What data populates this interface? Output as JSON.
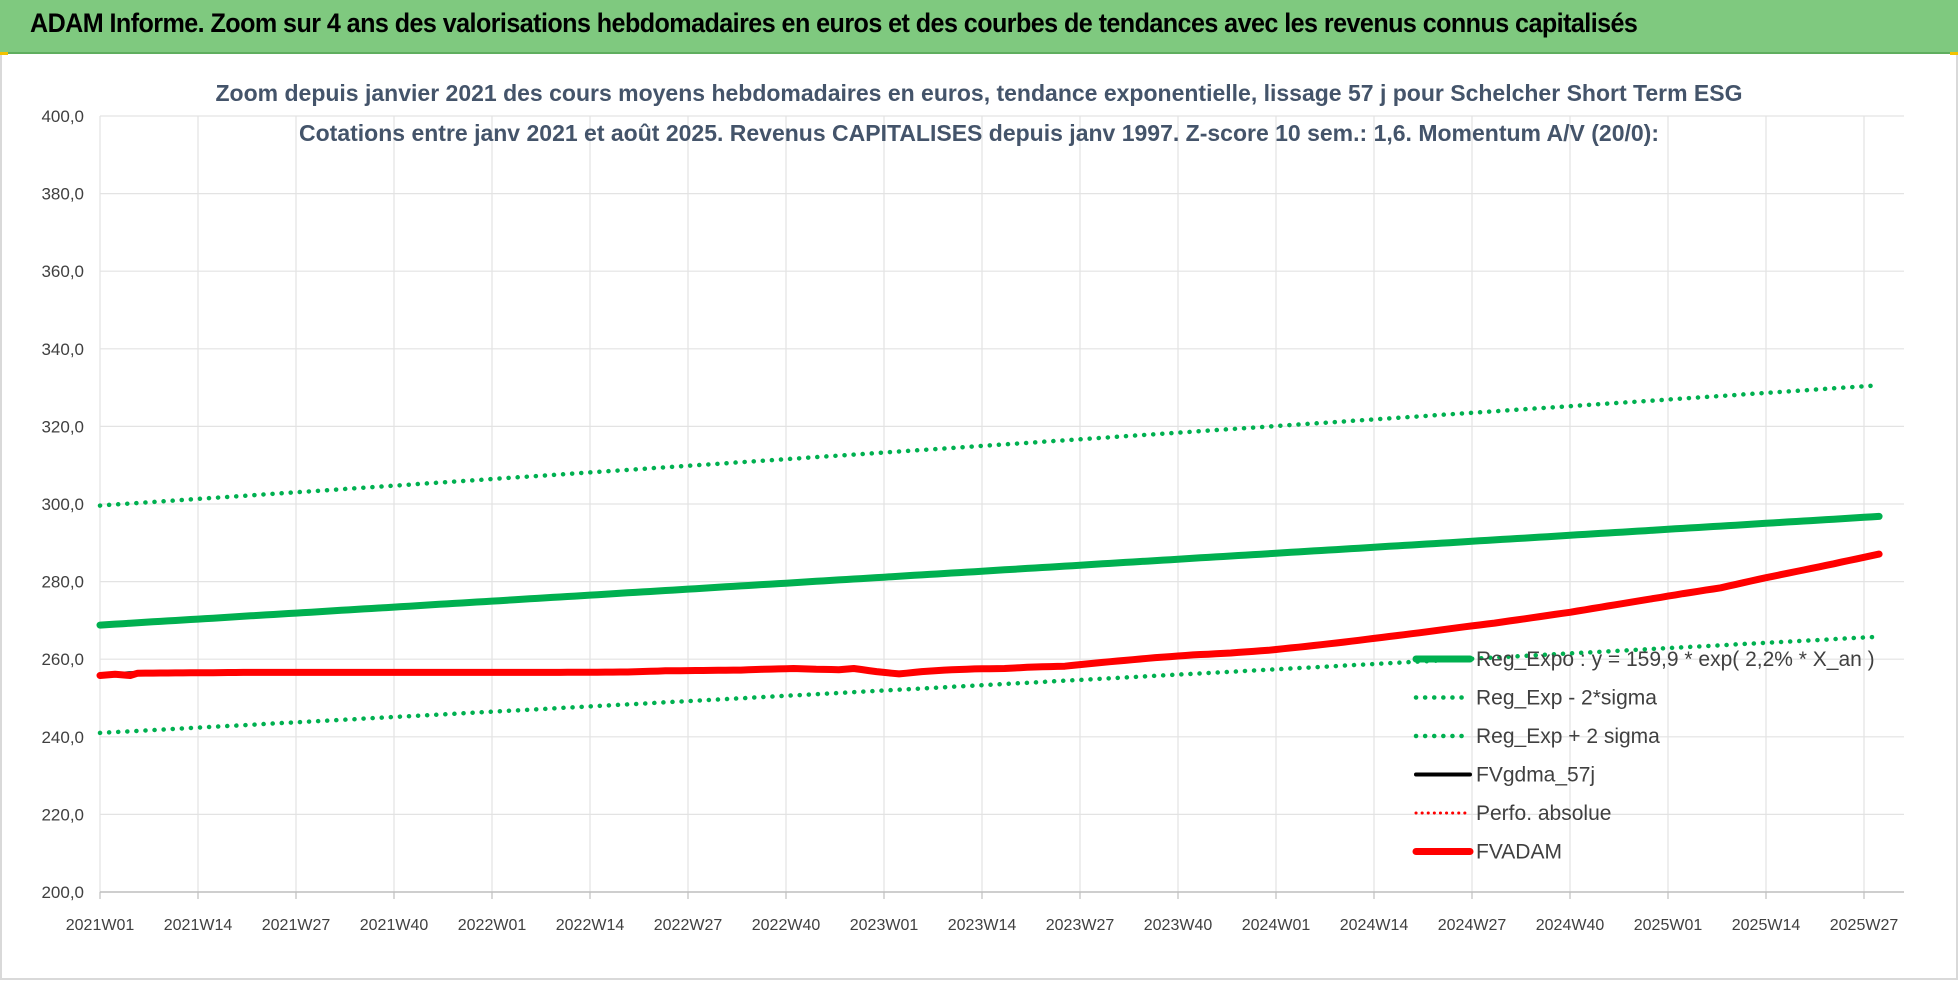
{
  "banner": {
    "text": "ADAM Informe. Zoom sur 4 ans des valorisations hebdomadaires en euros et des courbes de tendances avec les revenus connus capitalisés"
  },
  "colors": {
    "banner_bg": "#7fc97f",
    "green": "#00b050",
    "red": "#ff0000",
    "black": "#000000",
    "grid": "#e3e3e3",
    "title": "#44546a"
  },
  "chart_data": {
    "type": "line",
    "title": "Zoom depuis janvier 2021 des cours moyens hebdomadaires en euros, tendance exponentielle, lissage 57 j pour Schelcher Short Term ESG",
    "subtitle": "Cotations entre janv 2021 et août 2025. Revenus CAPITALISES depuis janv 1997. Z-score 10 sem.: 1,6. Momentum A/V (20/0):",
    "y_ticks": [
      "200,0",
      "220,0",
      "240,0",
      "260,0",
      "280,0",
      "300,0",
      "320,0",
      "340,0",
      "360,0",
      "380,0",
      "400,0"
    ],
    "ylim": [
      200,
      400
    ],
    "x_ticks": [
      "2021W01",
      "2021W14",
      "2021W27",
      "2021W40",
      "2022W01",
      "2022W14",
      "2022W27",
      "2022W40",
      "2023W01",
      "2023W14",
      "2023W27",
      "2023W40",
      "2024W01",
      "2024W14",
      "2024W27",
      "2024W40",
      "2025W01",
      "2025W14",
      "2025W27"
    ],
    "week_count": 237,
    "grid": true,
    "legend_position": "bottom-right",
    "series": [
      {
        "key": "reg",
        "name": "Reg_Expo : y = 159,9 * exp( 2,2% *  X_an )",
        "color": "#00b050",
        "style": "solid-thick",
        "points": [
          [
            0,
            268.8
          ],
          [
            236,
            296.8
          ]
        ]
      },
      {
        "key": "lo",
        "name": "Reg_Exp - 2*sigma",
        "color": "#00b050",
        "style": "dotted",
        "points": [
          [
            0,
            241.0
          ],
          [
            236,
            265.8
          ]
        ]
      },
      {
        "key": "hi",
        "name": "Reg_Exp + 2 sigma",
        "color": "#00b050",
        "style": "dotted",
        "points": [
          [
            0,
            299.6
          ],
          [
            236,
            330.6
          ]
        ]
      },
      {
        "key": "ma",
        "name": "FVgdma_57j",
        "color": "#000000",
        "style": "solid",
        "points": [
          [
            0,
            255.9
          ],
          [
            2,
            256.2
          ],
          [
            5,
            256.5
          ],
          [
            20,
            256.6
          ],
          [
            40,
            256.7
          ],
          [
            60,
            256.7
          ],
          [
            70,
            256.8
          ],
          [
            75,
            257.0
          ],
          [
            80,
            257.2
          ],
          [
            85,
            257.3
          ],
          [
            88,
            257.5
          ],
          [
            93,
            257.6
          ],
          [
            98,
            257.5
          ],
          [
            102,
            257.2
          ],
          [
            105,
            256.5
          ],
          [
            108,
            256.6
          ],
          [
            112,
            257.2
          ],
          [
            118,
            257.5
          ],
          [
            122,
            257.8
          ],
          [
            126,
            258.0
          ],
          [
            130,
            258.3
          ],
          [
            135,
            259.5
          ],
          [
            140,
            260.3
          ],
          [
            145,
            261.0
          ],
          [
            150,
            261.5
          ],
          [
            155,
            262.2
          ],
          [
            160,
            263.2
          ],
          [
            165,
            264.3
          ],
          [
            170,
            265.5
          ],
          [
            175,
            266.7
          ],
          [
            180,
            268.0
          ],
          [
            185,
            269.2
          ],
          [
            190,
            270.6
          ],
          [
            195,
            272.0
          ],
          [
            200,
            273.6
          ],
          [
            205,
            275.2
          ],
          [
            210,
            276.8
          ],
          [
            215,
            278.3
          ],
          [
            220,
            280.5
          ],
          [
            225,
            282.5
          ],
          [
            230,
            284.5
          ],
          [
            236,
            286.8
          ]
        ]
      },
      {
        "key": "perf",
        "name": "Perfo. absolue",
        "color": "#ff0000",
        "style": "dotted-thin",
        "points": [
          [
            0,
            255.8
          ],
          [
            2,
            256.1
          ],
          [
            4,
            255.8
          ],
          [
            5,
            256.4
          ],
          [
            20,
            256.6
          ],
          [
            40,
            256.6
          ],
          [
            60,
            256.6
          ],
          [
            70,
            256.7
          ],
          [
            75,
            257.0
          ],
          [
            80,
            257.1
          ],
          [
            85,
            257.2
          ],
          [
            88,
            257.4
          ],
          [
            92,
            257.6
          ],
          [
            95,
            257.4
          ],
          [
            98,
            257.3
          ],
          [
            100,
            257.6
          ],
          [
            103,
            256.8
          ],
          [
            106,
            256.2
          ],
          [
            109,
            256.8
          ],
          [
            112,
            257.2
          ],
          [
            116,
            257.5
          ],
          [
            120,
            257.6
          ],
          [
            124,
            258.0
          ],
          [
            128,
            258.2
          ],
          [
            132,
            259.0
          ],
          [
            136,
            259.7
          ],
          [
            140,
            260.4
          ],
          [
            145,
            261.1
          ],
          [
            150,
            261.6
          ],
          [
            155,
            262.3
          ],
          [
            160,
            263.3
          ],
          [
            165,
            264.4
          ],
          [
            170,
            265.6
          ],
          [
            175,
            266.8
          ],
          [
            180,
            268.1
          ],
          [
            185,
            269.3
          ],
          [
            190,
            270.7
          ],
          [
            195,
            272.1
          ],
          [
            200,
            273.7
          ],
          [
            205,
            275.3
          ],
          [
            210,
            276.9
          ],
          [
            215,
            278.4
          ],
          [
            220,
            280.6
          ],
          [
            225,
            282.6
          ],
          [
            230,
            284.6
          ],
          [
            236,
            287.1
          ]
        ]
      },
      {
        "key": "fv",
        "name": "FVADAM",
        "color": "#ff0000",
        "style": "solid-thick",
        "points": [
          [
            0,
            255.8
          ],
          [
            2,
            256.1
          ],
          [
            4,
            255.8
          ],
          [
            5,
            256.4
          ],
          [
            20,
            256.6
          ],
          [
            40,
            256.6
          ],
          [
            60,
            256.6
          ],
          [
            70,
            256.7
          ],
          [
            75,
            257.0
          ],
          [
            80,
            257.1
          ],
          [
            85,
            257.2
          ],
          [
            88,
            257.4
          ],
          [
            92,
            257.6
          ],
          [
            95,
            257.4
          ],
          [
            98,
            257.3
          ],
          [
            100,
            257.6
          ],
          [
            103,
            256.8
          ],
          [
            106,
            256.2
          ],
          [
            109,
            256.8
          ],
          [
            112,
            257.2
          ],
          [
            116,
            257.5
          ],
          [
            120,
            257.6
          ],
          [
            124,
            258.0
          ],
          [
            128,
            258.2
          ],
          [
            132,
            259.0
          ],
          [
            136,
            259.7
          ],
          [
            140,
            260.4
          ],
          [
            145,
            261.1
          ],
          [
            150,
            261.6
          ],
          [
            155,
            262.3
          ],
          [
            160,
            263.3
          ],
          [
            165,
            264.4
          ],
          [
            170,
            265.6
          ],
          [
            175,
            266.8
          ],
          [
            180,
            268.1
          ],
          [
            185,
            269.3
          ],
          [
            190,
            270.7
          ],
          [
            195,
            272.1
          ],
          [
            200,
            273.7
          ],
          [
            205,
            275.3
          ],
          [
            210,
            276.9
          ],
          [
            215,
            278.4
          ],
          [
            220,
            280.6
          ],
          [
            225,
            282.6
          ],
          [
            230,
            284.6
          ],
          [
            236,
            287.1
          ]
        ]
      }
    ]
  }
}
